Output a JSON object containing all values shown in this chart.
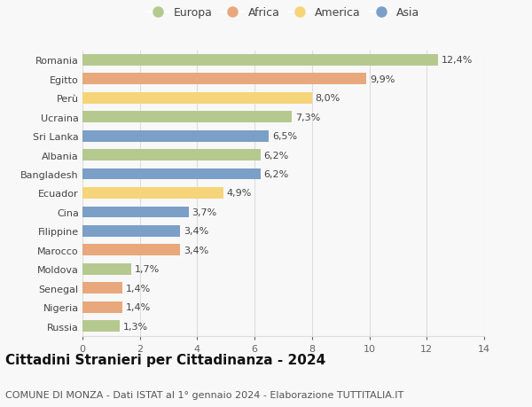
{
  "countries": [
    "Romania",
    "Egitto",
    "Perù",
    "Ucraina",
    "Sri Lanka",
    "Albania",
    "Bangladesh",
    "Ecuador",
    "Cina",
    "Filippine",
    "Marocco",
    "Moldova",
    "Senegal",
    "Nigeria",
    "Russia"
  ],
  "values": [
    12.4,
    9.9,
    8.0,
    7.3,
    6.5,
    6.2,
    6.2,
    4.9,
    3.7,
    3.4,
    3.4,
    1.7,
    1.4,
    1.4,
    1.3
  ],
  "labels": [
    "12,4%",
    "9,9%",
    "8,0%",
    "7,3%",
    "6,5%",
    "6,2%",
    "6,2%",
    "4,9%",
    "3,7%",
    "3,4%",
    "3,4%",
    "1,7%",
    "1,4%",
    "1,4%",
    "1,3%"
  ],
  "continents": [
    "Europa",
    "Africa",
    "America",
    "Europa",
    "Asia",
    "Europa",
    "Asia",
    "America",
    "Asia",
    "Asia",
    "Africa",
    "Europa",
    "Africa",
    "Africa",
    "Europa"
  ],
  "continent_colors": {
    "Europa": "#b5c98e",
    "Africa": "#e8a87c",
    "America": "#f5d47a",
    "Asia": "#7b9fc7"
  },
  "legend_order": [
    "Europa",
    "Africa",
    "America",
    "Asia"
  ],
  "title": "Cittadini Stranieri per Cittadinanza - 2024",
  "subtitle": "COMUNE DI MONZA - Dati ISTAT al 1° gennaio 2024 - Elaborazione TUTTITALIA.IT",
  "xlim": [
    0,
    14
  ],
  "xticks": [
    0,
    2,
    4,
    6,
    8,
    10,
    12,
    14
  ],
  "background_color": "#f8f8f8",
  "grid_color": "#dddddd",
  "bar_height": 0.6,
  "title_fontsize": 11,
  "subtitle_fontsize": 8,
  "label_fontsize": 8,
  "tick_fontsize": 8,
  "legend_fontsize": 9
}
